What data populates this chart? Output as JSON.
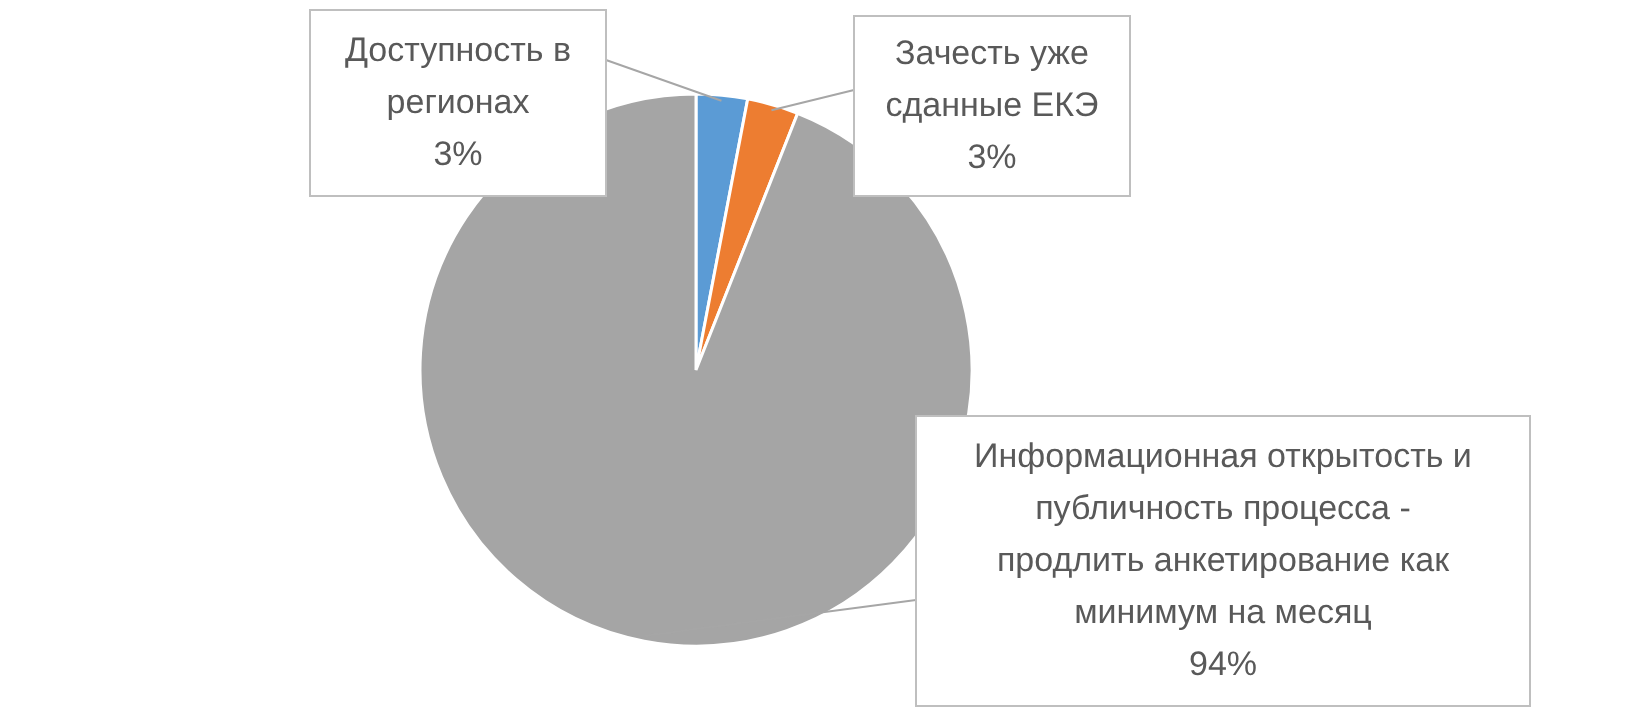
{
  "chart_data": {
    "type": "pie",
    "categories": [
      "Доступность в регионах",
      "Зачесть уже сданные ЕКЭ",
      "Информационная открытость и публичность процесса - продлить анкетирование как минимум на месяц"
    ],
    "values": [
      3,
      3,
      94
    ],
    "colors": [
      "#5b9bd5",
      "#ed7d31",
      "#a5a5a5"
    ],
    "value_labels": [
      "3%",
      "3%",
      "94%"
    ]
  }
}
